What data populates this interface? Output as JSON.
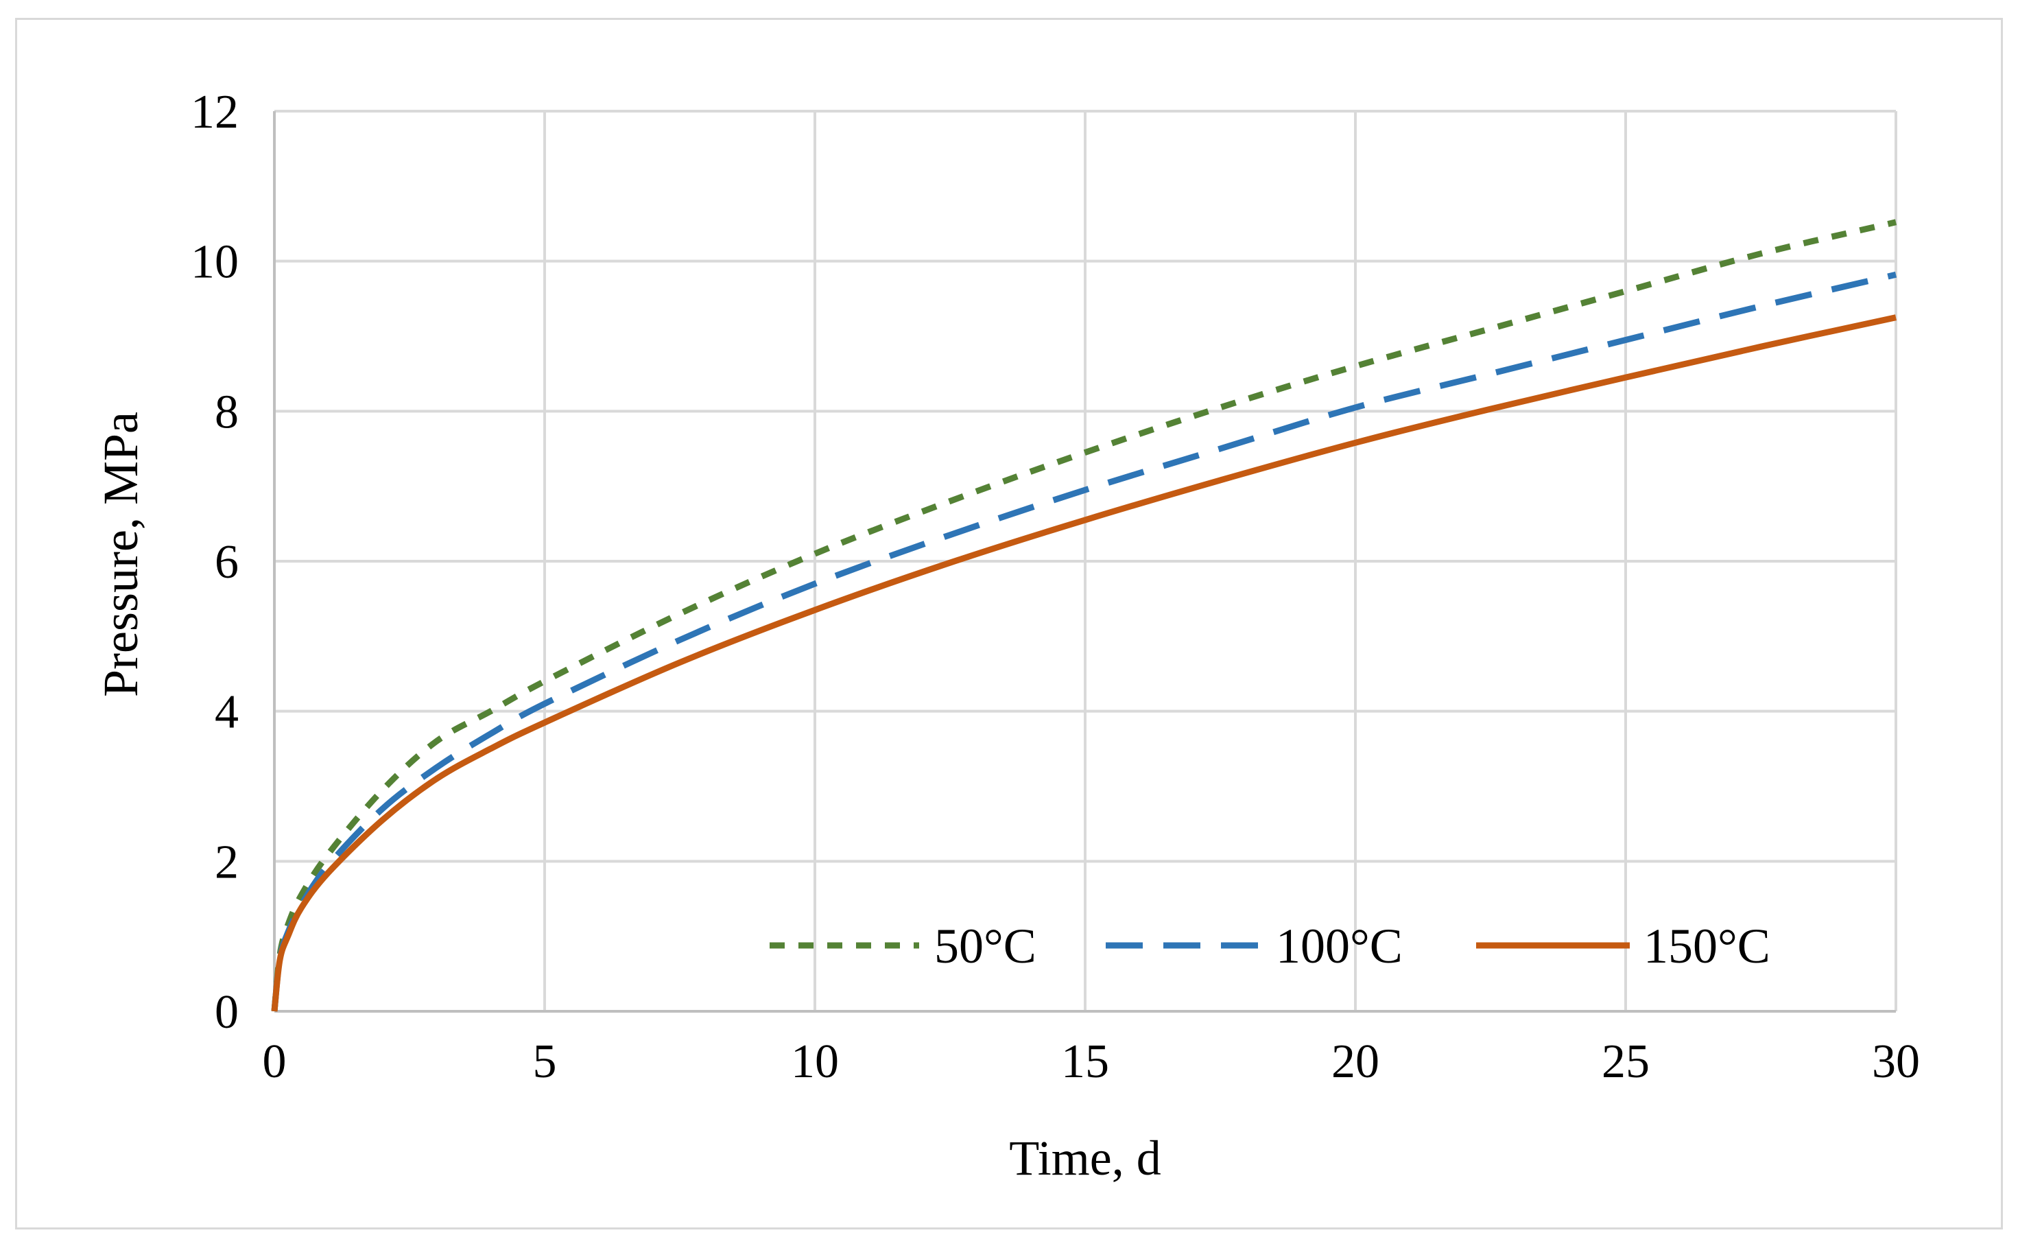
{
  "chart_data": {
    "type": "line",
    "title": "",
    "xlabel": "Time, d",
    "ylabel": "Pressure, MPa",
    "xlim": [
      0,
      30
    ],
    "ylim": [
      0,
      12
    ],
    "x_ticks": [
      "0",
      "5",
      "10",
      "15",
      "20",
      "25",
      "30"
    ],
    "y_ticks": [
      "0",
      "2",
      "4",
      "6",
      "8",
      "10",
      "12"
    ],
    "grid": true,
    "legend_position": "bottom-right",
    "series": [
      {
        "name": "50°C",
        "color": "#548235",
        "dash": "dashed",
        "x": [
          0,
          0.1,
          0.25,
          0.5,
          1,
          2,
          3,
          4,
          5,
          7.5,
          10,
          12.5,
          15,
          17.5,
          20,
          22.5,
          25,
          27.5,
          30
        ],
        "y": [
          0,
          0.75,
          1.15,
          1.55,
          2.1,
          2.95,
          3.6,
          4.0,
          4.4,
          5.3,
          6.1,
          6.8,
          7.45,
          8.05,
          8.6,
          9.1,
          9.6,
          10.1,
          10.52
        ]
      },
      {
        "name": "100°C",
        "color": "#2e75b6",
        "dash": "long-dash",
        "x": [
          0,
          0.1,
          0.25,
          0.5,
          1,
          2,
          3,
          4,
          5,
          7.5,
          10,
          12.5,
          15,
          17.5,
          20,
          22.5,
          25,
          27.5,
          30
        ],
        "y": [
          0,
          0.7,
          1.05,
          1.42,
          1.95,
          2.7,
          3.25,
          3.7,
          4.1,
          4.95,
          5.7,
          6.35,
          6.95,
          7.5,
          8.05,
          8.5,
          8.95,
          9.4,
          9.82
        ]
      },
      {
        "name": "150°C",
        "color": "#c55a11",
        "dash": "solid",
        "x": [
          0,
          0.1,
          0.25,
          0.5,
          1,
          2,
          3,
          4,
          5,
          7.5,
          10,
          12.5,
          15,
          17.5,
          20,
          22.5,
          25,
          27.5,
          30
        ],
        "y": [
          0,
          0.68,
          1.0,
          1.38,
          1.85,
          2.55,
          3.1,
          3.5,
          3.85,
          4.65,
          5.35,
          5.98,
          6.55,
          7.08,
          7.58,
          8.03,
          8.45,
          8.86,
          9.25
        ]
      }
    ]
  }
}
